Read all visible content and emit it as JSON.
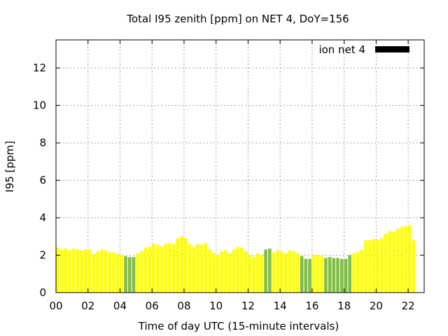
{
  "chart_data": {
    "type": "bar",
    "title": "Total I95 zenith [ppm] on NET 4, DoY=156",
    "xlabel": "Time of day UTC (15-minute intervals)",
    "ylabel": "I95 [ppm]",
    "xlim": [
      0,
      23
    ],
    "ylim": [
      0,
      13.5
    ],
    "grid": true,
    "legend": {
      "position": "top-right",
      "entries": [
        {
          "label": "ion net 4",
          "color": "#000000"
        }
      ]
    },
    "x_ticks": [
      "00",
      "02",
      "04",
      "06",
      "08",
      "10",
      "12",
      "14",
      "16",
      "18",
      "20",
      "22"
    ],
    "y_ticks": [
      "0",
      "2",
      "4",
      "6",
      "8",
      "10",
      "12"
    ],
    "colors": {
      "yellow": "#ffff00",
      "green": "#80c040"
    },
    "interval_hours": 0.25,
    "values": [
      2.4,
      2.3,
      2.35,
      2.25,
      2.35,
      2.3,
      2.25,
      2.3,
      2.3,
      2.05,
      2.2,
      2.3,
      2.25,
      2.15,
      2.15,
      2.05,
      2.0,
      1.95,
      1.9,
      1.9,
      2.1,
      2.2,
      2.4,
      2.45,
      2.6,
      2.55,
      2.45,
      2.6,
      2.65,
      2.6,
      2.9,
      3.0,
      2.9,
      2.6,
      2.45,
      2.6,
      2.55,
      2.65,
      2.3,
      2.1,
      2.0,
      2.2,
      2.25,
      2.1,
      2.3,
      2.45,
      2.4,
      2.2,
      2.0,
      1.9,
      2.1,
      2.0,
      2.3,
      2.35,
      2.15,
      2.25,
      2.2,
      2.1,
      2.25,
      2.2,
      2.1,
      1.95,
      1.8,
      1.8,
      2.0,
      2.0,
      1.95,
      1.85,
      1.9,
      1.85,
      1.85,
      1.8,
      1.8,
      2.0,
      2.1,
      2.15,
      2.3,
      2.8,
      2.8,
      2.85,
      2.8,
      2.9,
      3.15,
      3.3,
      3.25,
      3.4,
      3.5,
      3.55,
      3.6,
      2.8
    ],
    "bar_colors": [
      "yellow",
      "yellow",
      "yellow",
      "yellow",
      "yellow",
      "yellow",
      "yellow",
      "yellow",
      "yellow",
      "yellow",
      "yellow",
      "yellow",
      "yellow",
      "yellow",
      "yellow",
      "yellow",
      "yellow",
      "green",
      "green",
      "green",
      "yellow",
      "yellow",
      "yellow",
      "yellow",
      "yellow",
      "yellow",
      "yellow",
      "yellow",
      "yellow",
      "yellow",
      "yellow",
      "yellow",
      "yellow",
      "yellow",
      "yellow",
      "yellow",
      "yellow",
      "yellow",
      "yellow",
      "yellow",
      "yellow",
      "yellow",
      "yellow",
      "yellow",
      "yellow",
      "yellow",
      "yellow",
      "yellow",
      "yellow",
      "yellow",
      "yellow",
      "yellow",
      "green",
      "green",
      "yellow",
      "yellow",
      "yellow",
      "yellow",
      "yellow",
      "yellow",
      "yellow",
      "green",
      "green",
      "green",
      "yellow",
      "yellow",
      "yellow",
      "green",
      "green",
      "green",
      "green",
      "green",
      "green",
      "green",
      "yellow",
      "yellow",
      "yellow",
      "yellow",
      "yellow",
      "yellow",
      "yellow",
      "yellow",
      "yellow",
      "yellow",
      "yellow",
      "yellow",
      "yellow",
      "yellow",
      "yellow",
      "yellow"
    ]
  }
}
